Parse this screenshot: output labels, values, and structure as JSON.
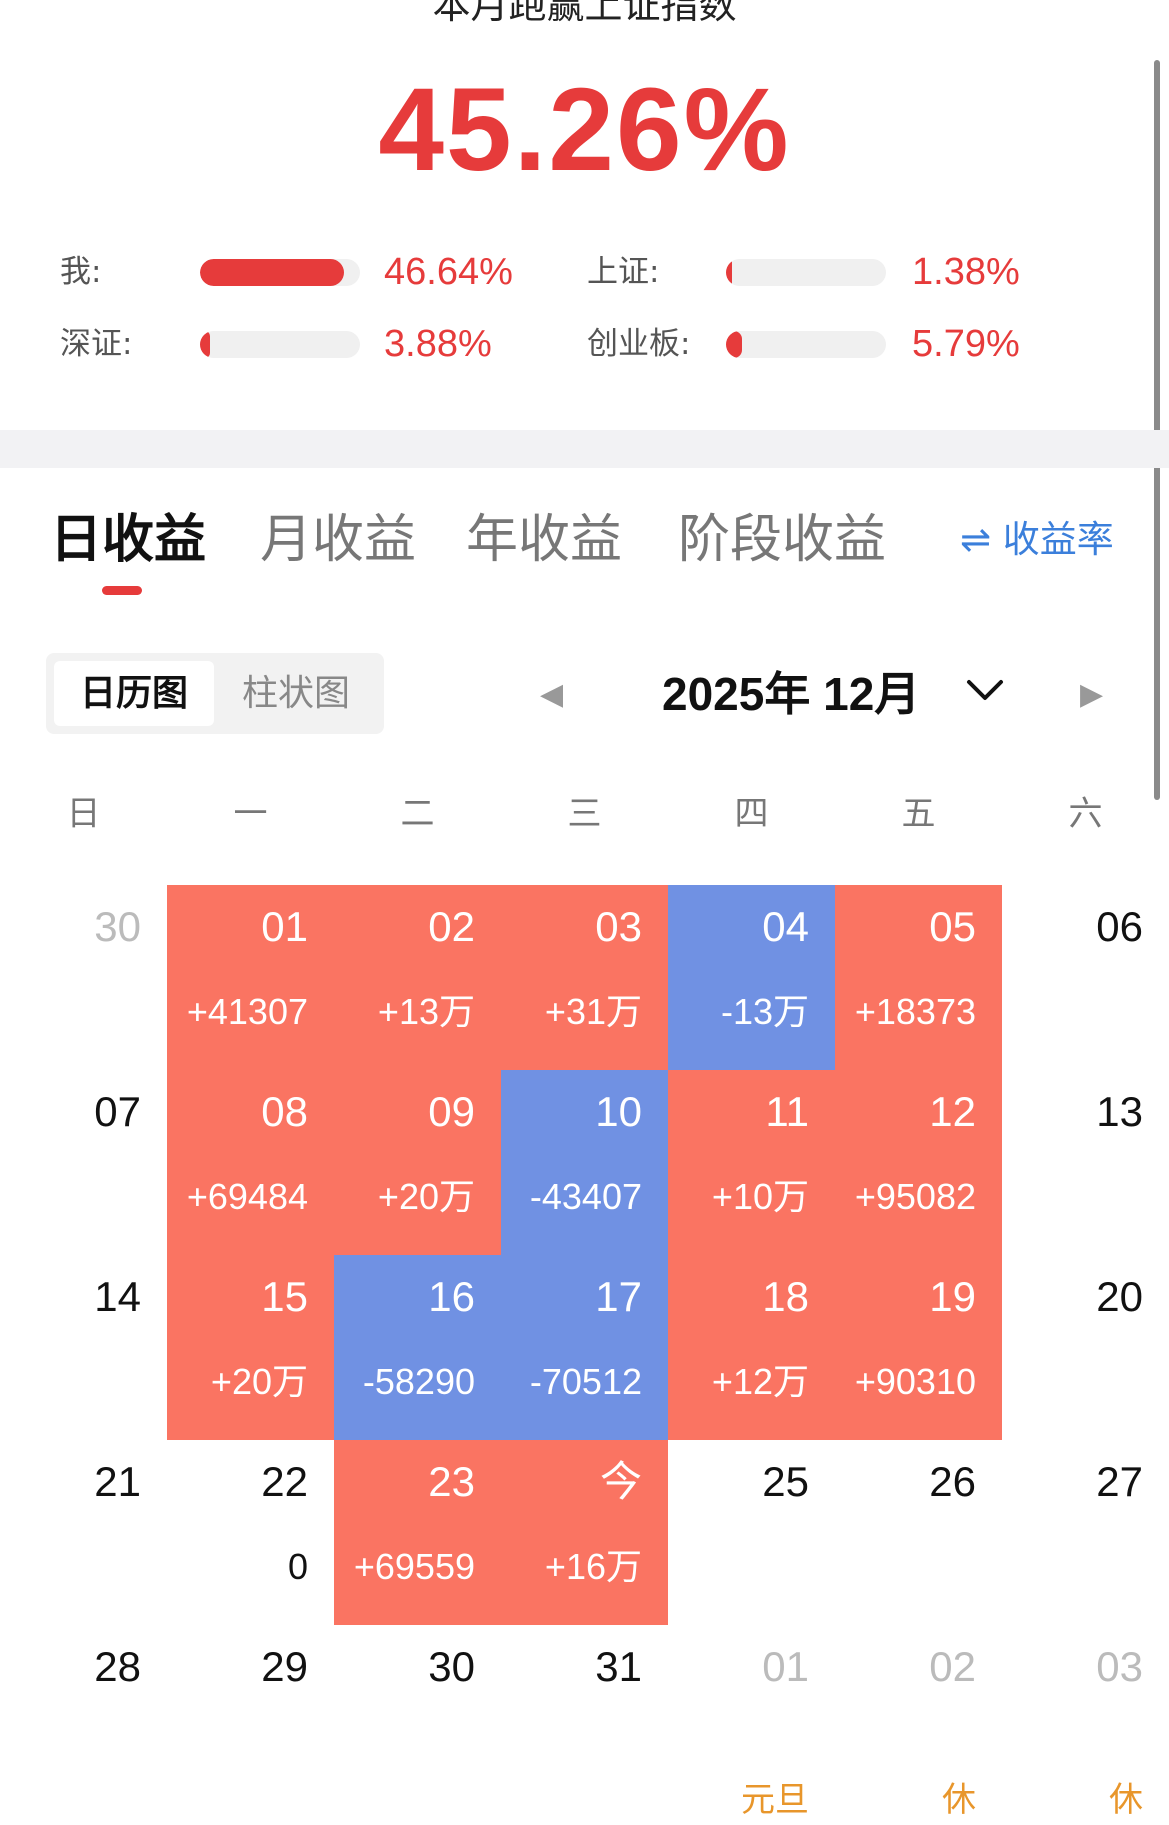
{
  "header": {
    "title": "本月跑赢上证指数",
    "headline_pct": "45.26%"
  },
  "stats": [
    {
      "label": "我:",
      "value": "46.64%",
      "fill": 0.9
    },
    {
      "label": "上证:",
      "value": "1.38%",
      "fill": 0.02
    },
    {
      "label": "深证:",
      "value": "3.88%",
      "fill": 0.06
    },
    {
      "label": "创业板:",
      "value": "5.79%",
      "fill": 0.1
    }
  ],
  "tabs": [
    {
      "label": "日收益",
      "active": true
    },
    {
      "label": "月收益",
      "active": false
    },
    {
      "label": "年收益",
      "active": false
    },
    {
      "label": "阶段收益",
      "active": false
    }
  ],
  "rate_toggle": "⇌ 收益率",
  "view_toggle": [
    "日历图",
    "柱状图"
  ],
  "month": {
    "label": "2025年 12月",
    "prev": "◀",
    "next": "▶"
  },
  "colors": {
    "accent_red": "#e63b3b",
    "gain": "#fa7462",
    "loss": "#7091e3",
    "link": "#3b7fdb",
    "holiday": "#e8962b"
  },
  "weekdays": [
    "日",
    "一",
    "二",
    "三",
    "四",
    "五",
    "六"
  ],
  "weeks": [
    [
      {
        "day": "30",
        "pl": "",
        "type": "muted"
      },
      {
        "day": "01",
        "pl": "+41307",
        "type": "red"
      },
      {
        "day": "02",
        "pl": "+13万",
        "type": "red"
      },
      {
        "day": "03",
        "pl": "+31万",
        "type": "red"
      },
      {
        "day": "04",
        "pl": "-13万",
        "type": "blue"
      },
      {
        "day": "05",
        "pl": "+18373",
        "type": "red"
      },
      {
        "day": "06",
        "pl": "",
        "type": "plain"
      }
    ],
    [
      {
        "day": "07",
        "pl": "",
        "type": "plain"
      },
      {
        "day": "08",
        "pl": "+69484",
        "type": "red"
      },
      {
        "day": "09",
        "pl": "+20万",
        "type": "red"
      },
      {
        "day": "10",
        "pl": "-43407",
        "type": "blue"
      },
      {
        "day": "11",
        "pl": "+10万",
        "type": "red"
      },
      {
        "day": "12",
        "pl": "+95082",
        "type": "red"
      },
      {
        "day": "13",
        "pl": "",
        "type": "plain"
      }
    ],
    [
      {
        "day": "14",
        "pl": "",
        "type": "plain"
      },
      {
        "day": "15",
        "pl": "+20万",
        "type": "red"
      },
      {
        "day": "16",
        "pl": "-58290",
        "type": "blue"
      },
      {
        "day": "17",
        "pl": "-70512",
        "type": "blue"
      },
      {
        "day": "18",
        "pl": "+12万",
        "type": "red"
      },
      {
        "day": "19",
        "pl": "+90310",
        "type": "red"
      },
      {
        "day": "20",
        "pl": "",
        "type": "plain"
      }
    ],
    [
      {
        "day": "21",
        "pl": "",
        "type": "plain"
      },
      {
        "day": "22",
        "pl": "0",
        "type": "plain"
      },
      {
        "day": "23",
        "pl": "+69559",
        "type": "red"
      },
      {
        "day": "今",
        "pl": "+16万",
        "type": "red"
      },
      {
        "day": "25",
        "pl": "",
        "type": "plain"
      },
      {
        "day": "26",
        "pl": "",
        "type": "plain"
      },
      {
        "day": "27",
        "pl": "",
        "type": "plain"
      }
    ],
    [
      {
        "day": "28",
        "pl": "",
        "type": "plain"
      },
      {
        "day": "29",
        "pl": "",
        "type": "plain"
      },
      {
        "day": "30",
        "pl": "",
        "type": "plain"
      },
      {
        "day": "31",
        "pl": "",
        "type": "plain"
      },
      {
        "day": "01",
        "pl": "",
        "type": "muted",
        "holiday": "元旦"
      },
      {
        "day": "02",
        "pl": "",
        "type": "muted",
        "holiday": "休"
      },
      {
        "day": "03",
        "pl": "",
        "type": "muted",
        "holiday": "休"
      }
    ]
  ]
}
